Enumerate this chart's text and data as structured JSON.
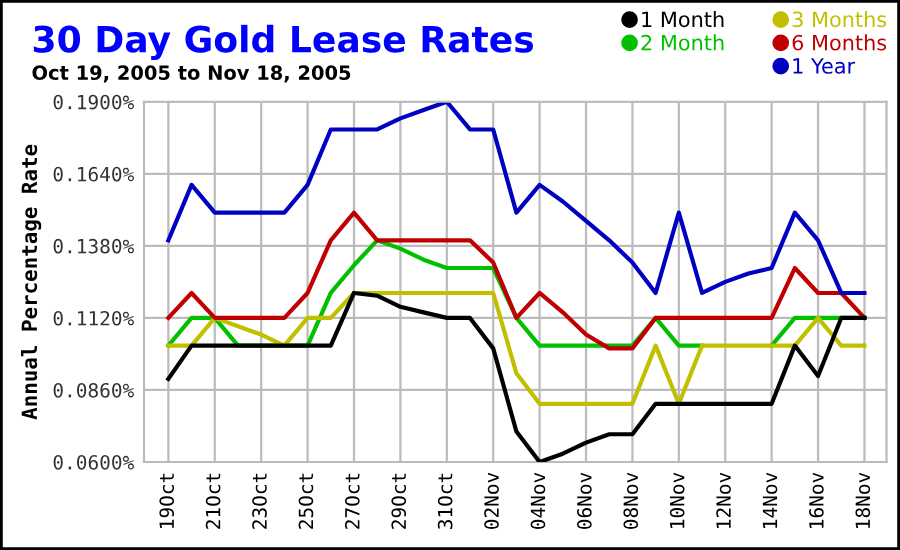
{
  "chart_data": {
    "type": "line",
    "title": "30 Day Gold Lease Rates",
    "subtitle": "Oct 19, 2005 to Nov 18, 2005",
    "ylabel": "Annual Percentage Rate",
    "categories": [
      "19Oct",
      null,
      "21Oct",
      null,
      "23Oct",
      null,
      "25Oct",
      null,
      "27Oct",
      null,
      "29Oct",
      null,
      "31Oct",
      null,
      "02Nov",
      null,
      "04Nov",
      null,
      "06Nov",
      null,
      "08Nov",
      null,
      "10Nov",
      null,
      "12Nov",
      null,
      "14Nov",
      null,
      "16Nov",
      null,
      "18Nov"
    ],
    "series": [
      {
        "name": "1 Month",
        "color": "#000000",
        "values": [
          0.09,
          0.102,
          0.102,
          0.102,
          0.102,
          0.102,
          0.102,
          0.102,
          0.121,
          0.12,
          0.116,
          0.114,
          0.112,
          0.112,
          0.101,
          0.071,
          0.06,
          0.063,
          0.067,
          0.07,
          0.07,
          0.081,
          0.081,
          0.081,
          0.081,
          0.081,
          0.081,
          0.102,
          0.091,
          0.112,
          0.112
        ]
      },
      {
        "name": "2 Month",
        "color": "#00c000",
        "values": [
          0.102,
          0.112,
          0.112,
          0.102,
          0.102,
          0.102,
          0.102,
          0.121,
          0.131,
          0.14,
          0.137,
          0.133,
          0.13,
          0.13,
          0.13,
          0.112,
          0.102,
          0.102,
          0.102,
          0.102,
          0.102,
          0.112,
          0.102,
          0.102,
          null,
          null,
          0.102,
          0.112,
          0.112,
          0.112,
          0.112
        ]
      },
      {
        "name": "3 Months",
        "color": "#c0c000",
        "values": [
          0.102,
          0.102,
          0.112,
          0.109,
          0.106,
          0.102,
          0.112,
          0.112,
          0.121,
          0.121,
          0.121,
          0.121,
          0.121,
          0.121,
          0.121,
          0.092,
          0.081,
          0.081,
          0.081,
          0.081,
          0.081,
          0.102,
          0.081,
          0.102,
          0.102,
          0.102,
          0.102,
          0.102,
          0.112,
          0.102,
          0.102
        ]
      },
      {
        "name": "6 Months",
        "color": "#c00000",
        "values": [
          0.112,
          0.121,
          0.112,
          0.112,
          0.112,
          0.112,
          0.121,
          0.14,
          0.15,
          0.14,
          0.14,
          0.14,
          0.14,
          0.14,
          0.132,
          0.112,
          0.121,
          0.114,
          0.106,
          0.101,
          0.101,
          0.112,
          0.112,
          0.112,
          0.112,
          0.112,
          0.112,
          0.13,
          0.121,
          0.121,
          0.112
        ]
      },
      {
        "name": "1 Year",
        "color": "#0000c0",
        "values": [
          0.14,
          0.16,
          0.15,
          0.15,
          0.15,
          0.15,
          0.16,
          0.18,
          0.18,
          0.18,
          0.184,
          0.187,
          0.19,
          0.18,
          0.18,
          0.15,
          0.16,
          0.154,
          0.147,
          0.14,
          0.132,
          0.121,
          0.15,
          0.121,
          0.125,
          0.128,
          0.13,
          0.15,
          0.14,
          0.121,
          0.121
        ]
      }
    ],
    "ylim": [
      0.06,
      0.19
    ],
    "yticks": [
      {
        "value": 0.06,
        "label": "0.0600%"
      },
      {
        "value": 0.086,
        "label": "0.0860%"
      },
      {
        "value": 0.112,
        "label": "0.1120%"
      },
      {
        "value": 0.138,
        "label": "0.1380%"
      },
      {
        "value": 0.164,
        "label": "0.1640%"
      },
      {
        "value": 0.19,
        "label": "0.1900%"
      }
    ],
    "grid": true,
    "legend": "top right",
    "marker": "none",
    "line_style": "solid"
  }
}
